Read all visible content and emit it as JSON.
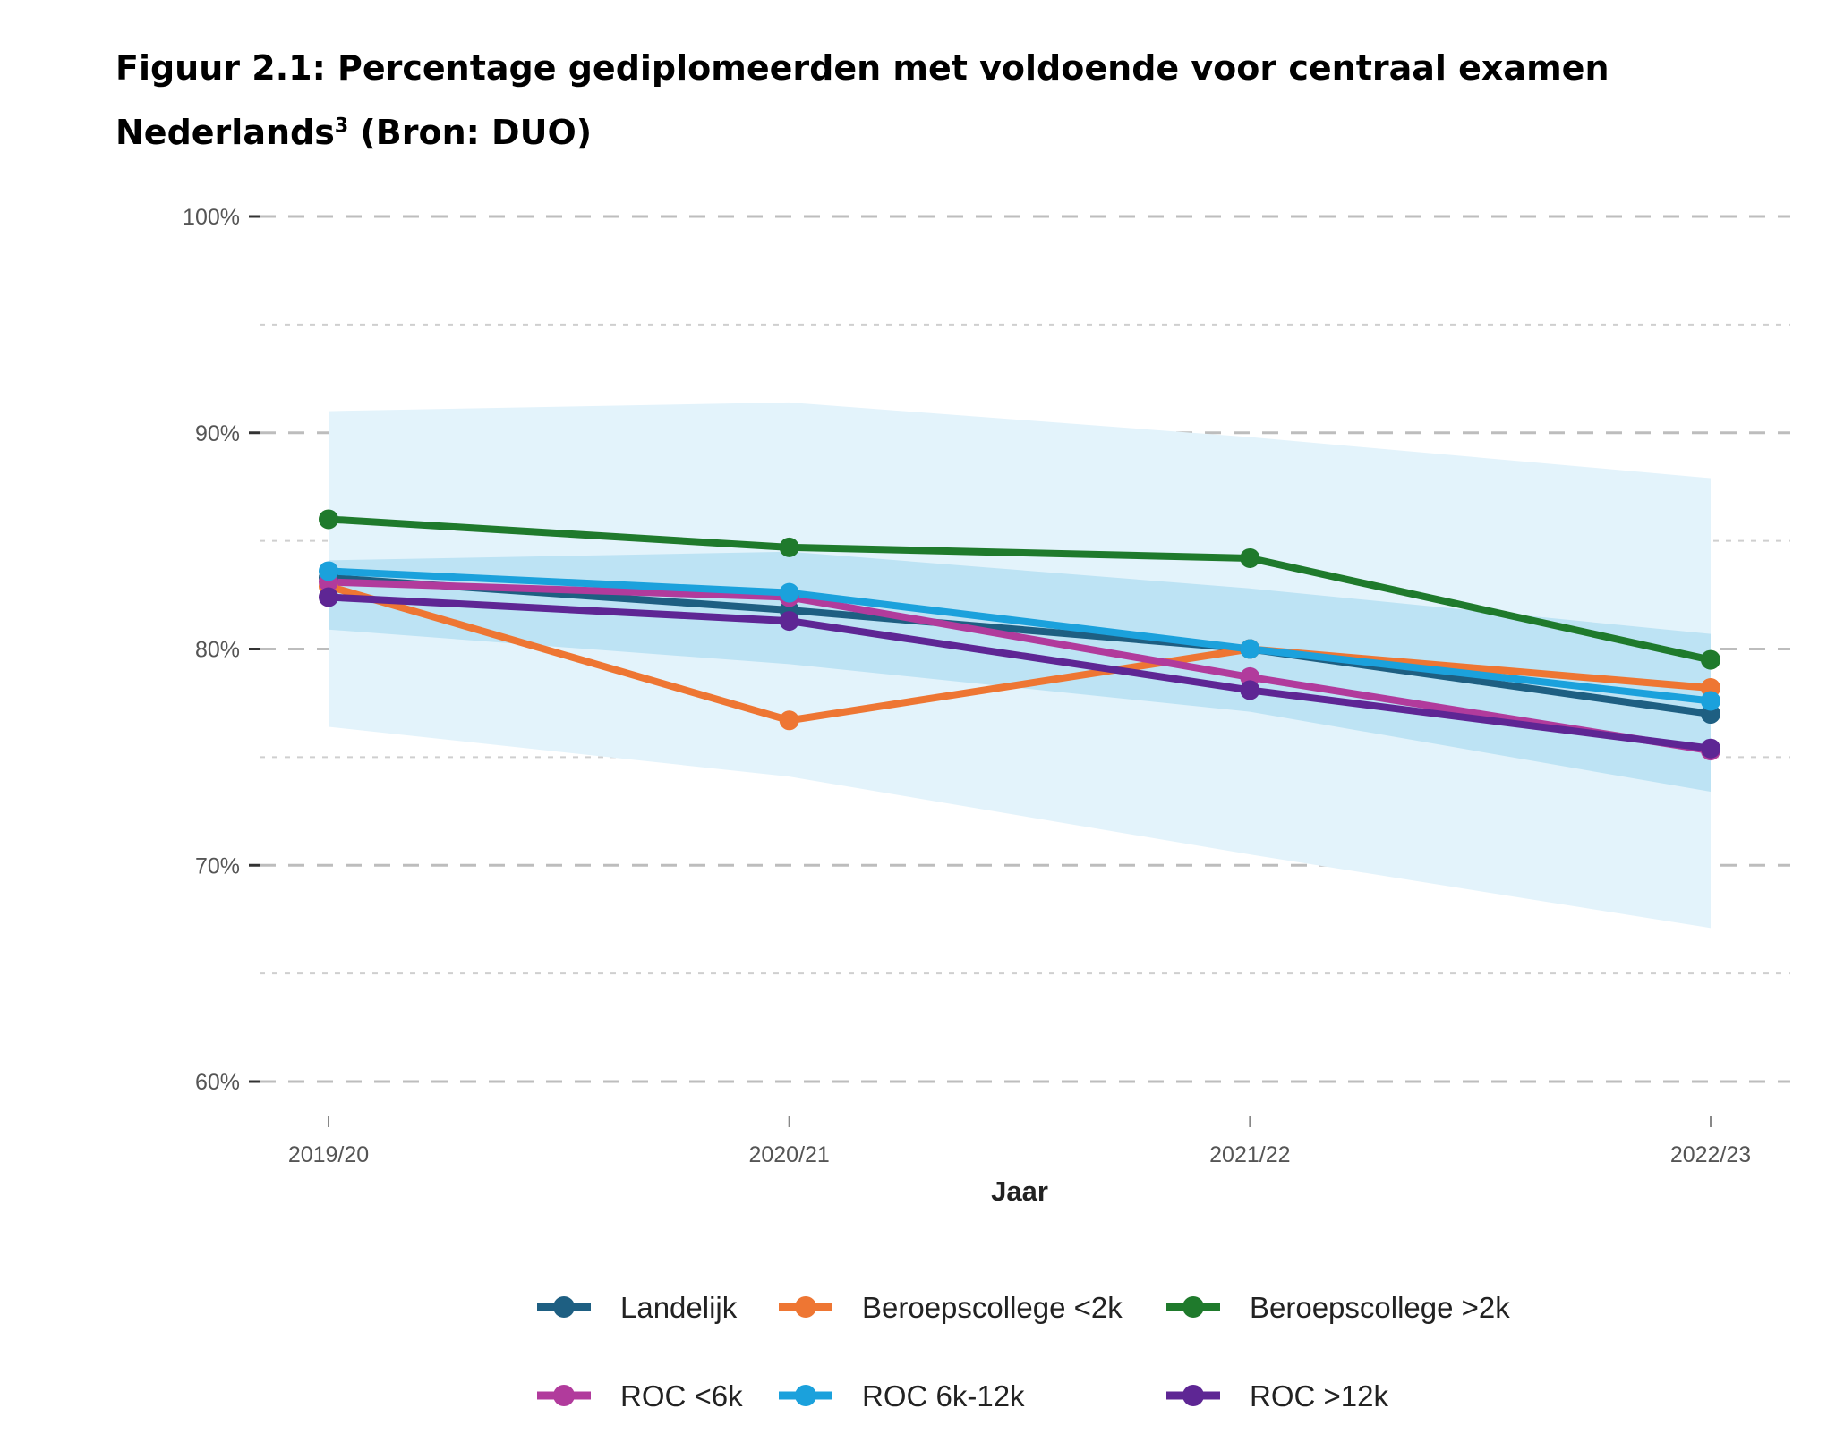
{
  "title": {
    "main": "Figuur 2.1: Percentage gediplomeerden met voldoende voor centraal examen Nederlands",
    "footnote": "3",
    "suffix": " (Bron: DUO)"
  },
  "chart_data": {
    "type": "line",
    "xlabel": "Jaar",
    "ylabel": "",
    "ylim": [
      60,
      100
    ],
    "y_ticks": [
      60,
      70,
      80,
      90,
      100
    ],
    "y_tick_labels": [
      "60%",
      "70%",
      "80%",
      "90%",
      "100%"
    ],
    "y_minor_gridlines": [
      65,
      75,
      85,
      95
    ],
    "grid": true,
    "legend_position": "bottom",
    "categories": [
      "2019/20",
      "2020/21",
      "2021/22",
      "2022/23"
    ],
    "bands": [
      {
        "kind": "outer",
        "color": "#e3f3fb",
        "lower": [
          76.4,
          74.1,
          70.5,
          67.1
        ],
        "upper": [
          91.0,
          91.4,
          89.8,
          87.9
        ]
      },
      {
        "kind": "inner",
        "color": "#bde3f4",
        "lower": [
          80.9,
          79.3,
          77.1,
          73.4
        ],
        "upper": [
          84.1,
          84.5,
          82.8,
          80.7
        ]
      }
    ],
    "series": [
      {
        "name": "Landelijk",
        "color": "#1e5f82",
        "values": [
          83.3,
          81.8,
          80.0,
          77.0
        ]
      },
      {
        "name": "Beroepscollege <2k",
        "color": "#ee7633",
        "values": [
          82.9,
          76.7,
          80.0,
          78.2
        ]
      },
      {
        "name": "Beroepscollege >2k",
        "color": "#1f7a2c",
        "values": [
          86.0,
          84.7,
          84.2,
          79.5
        ]
      },
      {
        "name": "ROC <6k",
        "color": "#b13b9c",
        "values": [
          83.1,
          82.4,
          78.7,
          75.3
        ]
      },
      {
        "name": "ROC 6k-12k",
        "color": "#1ba1dc",
        "values": [
          83.6,
          82.6,
          80.0,
          77.6
        ]
      },
      {
        "name": "ROC >12k",
        "color": "#5e2694",
        "values": [
          82.4,
          81.3,
          78.1,
          75.4
        ]
      }
    ]
  }
}
